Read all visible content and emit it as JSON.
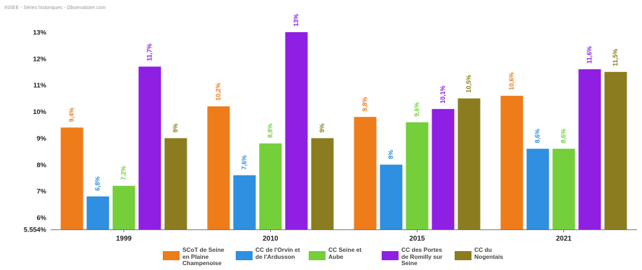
{
  "subtitle": "INSEE - Séries historiques - Observatoire.com",
  "colors": {
    "axis": "#777777",
    "tick_text": "#222222"
  },
  "chart_data": {
    "type": "bar",
    "title": "",
    "xlabel": "",
    "ylabel": "",
    "categories": [
      "1999",
      "2010",
      "2015",
      "2021"
    ],
    "ylim": [
      5.554,
      13
    ],
    "yticks": [
      5.554,
      6,
      7,
      8,
      9,
      10,
      11,
      12,
      13
    ],
    "ytick_labels": [
      "5.554%",
      "6%",
      "7%",
      "8%",
      "9%",
      "10%",
      "11%",
      "12%",
      "13%"
    ],
    "grid": false,
    "legend_position": "bottom",
    "series": [
      {
        "name": "SCoT de Seine en Plaine Champenoise",
        "color": "#ee7c1b",
        "values": [
          9.4,
          10.2,
          9.8,
          10.6
        ],
        "labels": [
          "9,4%",
          "10,2%",
          "9,8%",
          "10,6%"
        ]
      },
      {
        "name": "CC de l'Orvin et de l'Ardusson",
        "color": "#2f8fe0",
        "values": [
          6.8,
          7.6,
          8.0,
          8.6
        ],
        "labels": [
          "6,8%",
          "7,6%",
          "8%",
          "8,6%"
        ]
      },
      {
        "name": "CC Seine et Aube",
        "color": "#74cf3a",
        "values": [
          7.2,
          8.8,
          9.6,
          8.6
        ],
        "labels": [
          "7,2%",
          "8,8%",
          "9,6%",
          "8,6%"
        ]
      },
      {
        "name": "CC des Portes de Romilly sur Seine",
        "color": "#8f1fe3",
        "values": [
          11.7,
          13.0,
          10.1,
          11.6
        ],
        "labels": [
          "11,7%",
          "13%",
          "10,1%",
          "11,6%"
        ]
      },
      {
        "name": "CC du Nogentais",
        "color": "#8b7d1f",
        "values": [
          9.0,
          9.0,
          10.5,
          11.5
        ],
        "labels": [
          "9%",
          "9%",
          "10,5%",
          "11,5%"
        ]
      }
    ]
  }
}
